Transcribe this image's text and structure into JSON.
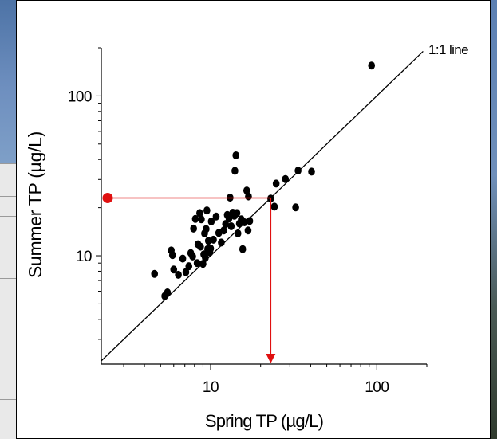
{
  "chart_data": {
    "type": "scatter",
    "title": "",
    "xlabel": "Spring TP (µg/L)",
    "ylabel": "Summer TP (µg/L)",
    "x_scale": "log",
    "y_scale": "log",
    "xlim": [
      2.2,
      200
    ],
    "ylim": [
      2.1,
      200
    ],
    "x_ticks": [
      {
        "value": 10,
        "label": "10"
      },
      {
        "value": 100,
        "label": "100"
      }
    ],
    "y_ticks": [
      {
        "value": 10,
        "label": "10"
      },
      {
        "value": 100,
        "label": "100"
      }
    ],
    "grid": false,
    "reference_line": {
      "label": "1:1 line",
      "from": [
        2.2,
        2.2
      ],
      "to": [
        190,
        190
      ]
    },
    "highlight": {
      "color": "#e01010",
      "y_value": 23,
      "x_value": 23
    },
    "point_color": "#000000",
    "series": [
      {
        "points": [
          [
            4.6,
            7.7
          ],
          [
            5.3,
            5.6
          ],
          [
            5.5,
            5.9
          ],
          [
            5.8,
            10.8
          ],
          [
            5.9,
            10.1
          ],
          [
            6.0,
            8.2
          ],
          [
            6.4,
            7.6
          ],
          [
            6.8,
            9.6
          ],
          [
            7.1,
            7.9
          ],
          [
            7.4,
            8.6
          ],
          [
            7.6,
            10.4
          ],
          [
            7.8,
            9.9
          ],
          [
            7.9,
            14.8
          ],
          [
            8.1,
            17.0
          ],
          [
            8.3,
            9.0
          ],
          [
            8.4,
            11.8
          ],
          [
            8.6,
            18.5
          ],
          [
            8.7,
            11.4
          ],
          [
            8.8,
            16.9
          ],
          [
            9.0,
            8.9
          ],
          [
            9.1,
            10.2
          ],
          [
            9.2,
            13.8
          ],
          [
            9.3,
            9.7
          ],
          [
            9.4,
            14.7
          ],
          [
            9.5,
            19.2
          ],
          [
            9.6,
            11.0
          ],
          [
            9.7,
            12.4
          ],
          [
            9.9,
            10.5
          ],
          [
            10.0,
            11.1
          ],
          [
            10.1,
            16.4
          ],
          [
            10.4,
            12.6
          ],
          [
            10.8,
            17.6
          ],
          [
            11.2,
            13.9
          ],
          [
            11.6,
            12.1
          ],
          [
            12.0,
            14.4
          ],
          [
            12.3,
            15.8
          ],
          [
            12.6,
            18.0
          ],
          [
            12.9,
            17.1
          ],
          [
            13.1,
            23.1
          ],
          [
            13.3,
            15.3
          ],
          [
            13.6,
            18.6
          ],
          [
            13.9,
            17.8
          ],
          [
            14.0,
            34.0
          ],
          [
            14.2,
            42.5
          ],
          [
            14.4,
            18.5
          ],
          [
            14.6,
            13.8
          ],
          [
            14.9,
            15.9
          ],
          [
            15.3,
            16.9
          ],
          [
            15.6,
            11.0
          ],
          [
            16.0,
            16.2
          ],
          [
            16.5,
            25.6
          ],
          [
            16.8,
            14.4
          ],
          [
            16.9,
            23.5
          ],
          [
            17.2,
            16.5
          ],
          [
            23.0,
            22.8
          ],
          [
            24.2,
            20.3
          ],
          [
            24.8,
            28.3
          ],
          [
            28.2,
            30.2
          ],
          [
            32.5,
            20.1
          ],
          [
            33.6,
            34.1
          ],
          [
            40.5,
            33.6
          ],
          [
            93.0,
            155.0
          ]
        ]
      }
    ]
  }
}
